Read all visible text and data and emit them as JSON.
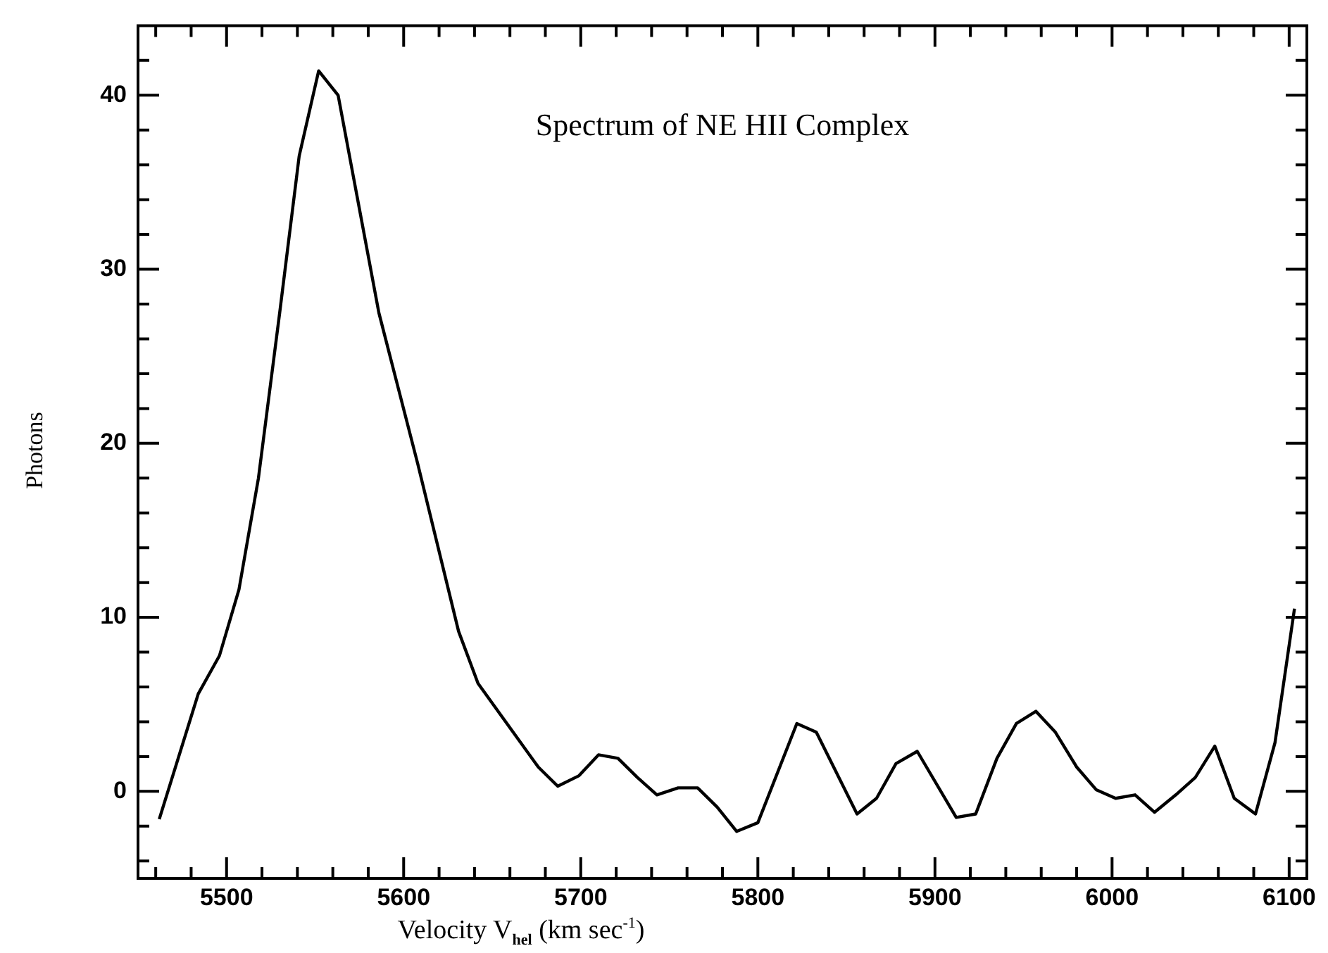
{
  "chart_data": {
    "type": "line",
    "title": "Spectrum of NE HII Complex",
    "xlabel": "Velocity V$_{hel}$ (km sec$^{-1}$)",
    "ylabel": "Photons",
    "x": [
      5462,
      5473,
      5484,
      5496,
      5507,
      5518,
      5530,
      5541,
      5552,
      5563,
      5586,
      5608,
      5631,
      5642,
      5676,
      5687,
      5699,
      5710,
      5721,
      5732,
      5743,
      5755,
      5766,
      5777,
      5788,
      5800,
      5822,
      5833,
      5856,
      5867,
      5878,
      5890,
      5912,
      5923,
      5935,
      5946,
      5957,
      5968,
      5980,
      5991,
      6002,
      6013,
      6024,
      6036,
      6047,
      6058,
      6069,
      6081,
      6092,
      6103
    ],
    "series": [
      {
        "color": "#000000",
        "values": [
          -1.6,
          2.0,
          5.6,
          7.8,
          11.6,
          18.0,
          27.5,
          36.5,
          41.4,
          40.0,
          27.5,
          18.8,
          9.2,
          6.2,
          1.4,
          0.3,
          0.9,
          2.1,
          1.9,
          0.8,
          -0.2,
          0.2,
          0.2,
          -0.9,
          -2.3,
          -1.8,
          3.9,
          3.4,
          -1.3,
          -0.4,
          1.6,
          2.3,
          -1.5,
          -1.3,
          1.9,
          3.9,
          4.6,
          3.4,
          1.4,
          0.1,
          -0.4,
          -0.2,
          -1.2,
          -0.2,
          0.8,
          2.6,
          -0.4,
          -1.3,
          2.8,
          10.5
        ]
      }
    ],
    "xlim": [
      5450,
      6110
    ],
    "xticks": [
      {
        "value": 5460,
        "label": null
      },
      {
        "value": 5480,
        "label": null
      },
      5500,
      {
        "value": 5520,
        "label": null
      },
      {
        "value": 5540,
        "label": null
      },
      {
        "value": 5560,
        "label": null
      },
      {
        "value": 5580,
        "label": null
      },
      5600,
      {
        "value": 5620,
        "label": null
      },
      {
        "value": 5640,
        "label": null
      },
      {
        "value": 5660,
        "label": null
      },
      {
        "value": 5680,
        "label": null
      },
      5700,
      {
        "value": 5720,
        "label": null
      },
      {
        "value": 5740,
        "label": null
      },
      {
        "value": 5760,
        "label": null
      },
      {
        "value": 5780,
        "label": null
      },
      5800,
      {
        "value": 5820,
        "label": null
      },
      {
        "value": 5840,
        "label": null
      },
      {
        "value": 5860,
        "label": null
      },
      {
        "value": 5880,
        "label": null
      },
      5900,
      {
        "value": 5920,
        "label": null
      },
      {
        "value": 5940,
        "label": null
      },
      {
        "value": 5960,
        "label": null
      },
      {
        "value": 5980,
        "label": null
      },
      6000,
      {
        "value": 6020,
        "label": null
      },
      {
        "value": 6040,
        "label": null
      },
      {
        "value": 6060,
        "label": null
      },
      {
        "value": 6080,
        "label": null
      },
      6100
    ],
    "ylim": [
      -5,
      44
    ],
    "yticks": [
      {
        "value": -4,
        "label": null
      },
      {
        "value": -2,
        "label": null
      },
      0,
      {
        "value": 2,
        "label": null
      },
      {
        "value": 4,
        "label": null
      },
      {
        "value": 6,
        "label": null
      },
      {
        "value": 8,
        "label": null
      },
      10,
      {
        "value": 12,
        "label": null
      },
      {
        "value": 14,
        "label": null
      },
      {
        "value": 16,
        "label": null
      },
      {
        "value": 18,
        "label": null
      },
      20,
      {
        "value": 22,
        "label": null
      },
      {
        "value": 24,
        "label": null
      },
      {
        "value": 26,
        "label": null
      },
      {
        "value": 28,
        "label": null
      },
      30,
      {
        "value": 32,
        "label": null
      },
      {
        "value": 34,
        "label": null
      },
      {
        "value": 36,
        "label": null
      },
      {
        "value": 38,
        "label": null
      },
      40,
      {
        "value": 42,
        "label": null
      }
    ],
    "marker": "none",
    "legend": false
  }
}
